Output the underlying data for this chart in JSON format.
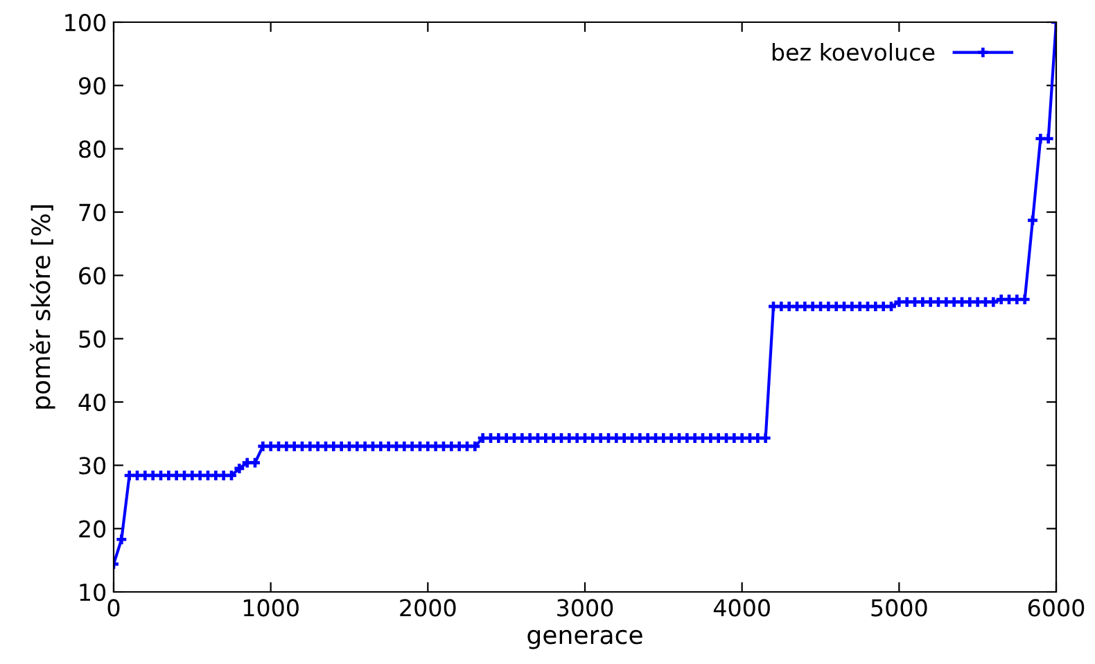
{
  "chart_data": {
    "type": "line",
    "xlabel": "generace",
    "ylabel": "poměr skóre [%]",
    "x": [
      0,
      50,
      100,
      150,
      200,
      250,
      300,
      350,
      400,
      450,
      500,
      550,
      600,
      650,
      700,
      750,
      800,
      850,
      900,
      950,
      1000,
      1050,
      1100,
      1150,
      1200,
      1250,
      1300,
      1350,
      1400,
      1450,
      1500,
      1550,
      1600,
      1650,
      1700,
      1750,
      1800,
      1850,
      1900,
      1950,
      2000,
      2050,
      2100,
      2150,
      2200,
      2250,
      2300,
      2350,
      2400,
      2450,
      2500,
      2550,
      2600,
      2650,
      2700,
      2750,
      2800,
      2850,
      2900,
      2950,
      3000,
      3050,
      3100,
      3150,
      3200,
      3250,
      3300,
      3350,
      3400,
      3450,
      3500,
      3550,
      3600,
      3650,
      3700,
      3750,
      3800,
      3850,
      3900,
      3950,
      4000,
      4050,
      4100,
      4150,
      4200,
      4250,
      4300,
      4350,
      4400,
      4450,
      4500,
      4550,
      4600,
      4650,
      4700,
      4750,
      4800,
      4850,
      4900,
      4950,
      5000,
      5050,
      5100,
      5150,
      5200,
      5250,
      5300,
      5350,
      5400,
      5450,
      5500,
      5550,
      5600,
      5650,
      5700,
      5750,
      5800,
      5850,
      5900,
      5950,
      6000
    ],
    "series": [
      {
        "name": "bez koevoluce",
        "color": "#0000ff",
        "values": [
          14.4,
          18.3,
          28.4,
          28.4,
          28.4,
          28.4,
          28.4,
          28.4,
          28.4,
          28.4,
          28.4,
          28.4,
          28.4,
          28.4,
          28.4,
          28.4,
          29.5,
          30.4,
          30.4,
          33.0,
          33.0,
          33.0,
          33.0,
          33.0,
          33.0,
          33.0,
          33.0,
          33.0,
          33.0,
          33.0,
          33.0,
          33.0,
          33.0,
          33.0,
          33.0,
          33.0,
          33.0,
          33.0,
          33.0,
          33.0,
          33.0,
          33.0,
          33.0,
          33.0,
          33.0,
          33.0,
          33.0,
          34.3,
          34.3,
          34.3,
          34.3,
          34.3,
          34.3,
          34.3,
          34.3,
          34.3,
          34.3,
          34.3,
          34.3,
          34.3,
          34.3,
          34.3,
          34.3,
          34.3,
          34.3,
          34.3,
          34.3,
          34.3,
          34.3,
          34.3,
          34.3,
          34.3,
          34.3,
          34.3,
          34.3,
          34.3,
          34.3,
          34.3,
          34.3,
          34.3,
          34.3,
          34.3,
          34.3,
          34.3,
          55.1,
          55.1,
          55.1,
          55.1,
          55.1,
          55.1,
          55.1,
          55.1,
          55.1,
          55.1,
          55.1,
          55.1,
          55.1,
          55.1,
          55.1,
          55.1,
          55.8,
          55.8,
          55.8,
          55.8,
          55.8,
          55.8,
          55.8,
          55.8,
          55.8,
          55.8,
          55.8,
          55.8,
          55.8,
          56.2,
          56.2,
          56.2,
          56.2,
          68.7,
          81.6,
          81.6,
          100
        ]
      }
    ],
    "xlim": [
      0,
      6000
    ],
    "xticks": [
      0,
      1000,
      2000,
      3000,
      4000,
      5000,
      6000
    ],
    "ylim": [
      10,
      100
    ],
    "yticks": [
      10,
      20,
      30,
      40,
      50,
      60,
      70,
      80,
      90,
      100
    ],
    "grid": false,
    "legend": "top right",
    "marker": "cross",
    "line_style": "solid"
  }
}
